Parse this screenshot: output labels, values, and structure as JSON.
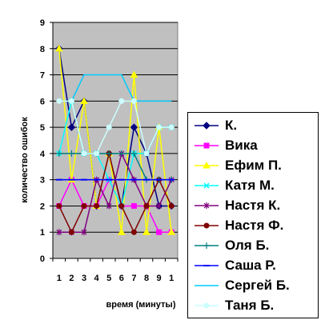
{
  "chart_data": {
    "type": "line",
    "xlabel": "время (минуты)",
    "ylabel": "количество ошибок",
    "categories": [
      "1",
      "2",
      "3",
      "4",
      "5",
      "6",
      "7",
      "8",
      "9",
      "1"
    ],
    "ylim": [
      0,
      9
    ],
    "yticks": [
      "0",
      "1",
      "2",
      "3",
      "4",
      "5",
      "6",
      "7",
      "8",
      "9"
    ],
    "grid": true,
    "plot_background": "#c0c0c0",
    "legend_position": "right",
    "series": [
      {
        "name": "К.",
        "color": "#000080",
        "marker": "diamond",
        "values": [
          8,
          5,
          6,
          2,
          4,
          2,
          5,
          4,
          2,
          2
        ]
      },
      {
        "name": "Вика",
        "color": "#ff00ff",
        "marker": "square",
        "values": [
          2,
          3,
          2,
          2,
          3,
          2,
          2,
          2,
          1,
          1
        ]
      },
      {
        "name": "Ефим П.",
        "color": "#ffff00",
        "marker": "triangle",
        "values": [
          8,
          3,
          6,
          2,
          4,
          1,
          7,
          1,
          5,
          1
        ]
      },
      {
        "name": "Катя М.",
        "color": "#00ffff",
        "marker": "x",
        "values": [
          4,
          6,
          4,
          4,
          3,
          2,
          4,
          4,
          5,
          5
        ]
      },
      {
        "name": "Настя К.",
        "color": "#800080",
        "marker": "star",
        "values": [
          1,
          1,
          1,
          3,
          2,
          4,
          3,
          2,
          2,
          3
        ]
      },
      {
        "name": "Настя Ф.",
        "color": "#800000",
        "marker": "circle",
        "values": [
          2,
          1,
          2,
          2,
          4,
          2,
          1,
          2,
          3,
          2
        ]
      },
      {
        "name": "Оля Б.",
        "color": "#008080",
        "marker": "plus",
        "values": [
          4,
          4,
          4,
          4,
          4,
          4,
          4,
          3,
          3,
          3
        ]
      },
      {
        "name": "Саша Р.",
        "color": "#0000ff",
        "marker": "dash",
        "values": [
          3,
          3,
          3,
          3,
          3,
          3,
          3,
          3,
          3,
          3
        ]
      },
      {
        "name": "Сергей Б.",
        "color": "#00ccff",
        "marker": "none",
        "values": [
          6,
          6,
          7,
          7,
          7,
          7,
          6,
          6,
          6,
          6
        ]
      },
      {
        "name": "Таня Б.",
        "color": "#ccffff",
        "marker": "circle",
        "values": [
          6,
          6,
          4,
          4,
          5,
          6,
          6,
          4,
          5,
          5
        ]
      }
    ]
  }
}
